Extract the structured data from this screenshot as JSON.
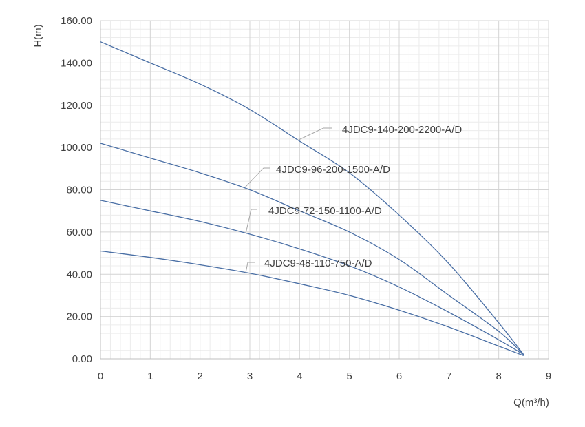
{
  "chart_data": {
    "type": "line",
    "title": "",
    "xlabel": "Q(m³/h)",
    "ylabel": "H(m)",
    "xlim": [
      0,
      9
    ],
    "ylim": [
      0,
      160
    ],
    "x_ticks": [
      "0",
      "1",
      "2",
      "3",
      "4",
      "5",
      "6",
      "7",
      "8",
      "9"
    ],
    "y_ticks": [
      "0.00",
      "20.00",
      "40.00",
      "60.00",
      "80.00",
      "100.00",
      "120.00",
      "140.00",
      "160.00"
    ],
    "grid": true,
    "line_color": "#4a6fa5",
    "series": [
      {
        "name": "4JDC9-140-200-2200-A/D",
        "x": [
          0,
          1,
          2,
          3,
          4,
          5,
          6,
          7,
          8,
          8.5
        ],
        "y": [
          150,
          140,
          130,
          118,
          103,
          88,
          68,
          45,
          17,
          2
        ]
      },
      {
        "name": "4JDC9-96-200-1500-A/D",
        "x": [
          0,
          1,
          2,
          3,
          4,
          5,
          6,
          7,
          8,
          8.5
        ],
        "y": [
          102,
          95,
          88,
          80,
          70,
          60,
          47,
          30,
          13,
          2
        ]
      },
      {
        "name": "4JDC9-72-150-1100-A/D",
        "x": [
          0,
          1,
          2,
          3,
          4,
          5,
          6,
          7,
          8,
          8.5
        ],
        "y": [
          75,
          70,
          65,
          59,
          52,
          44,
          34,
          22,
          9,
          2
        ]
      },
      {
        "name": "4JDC9-48-110-750-A/D",
        "x": [
          0,
          1,
          2,
          3,
          4,
          5,
          6,
          7,
          8,
          8.5
        ],
        "y": [
          51,
          48,
          44.5,
          40.5,
          35.5,
          30,
          23,
          15,
          6,
          1.5
        ]
      }
    ]
  }
}
